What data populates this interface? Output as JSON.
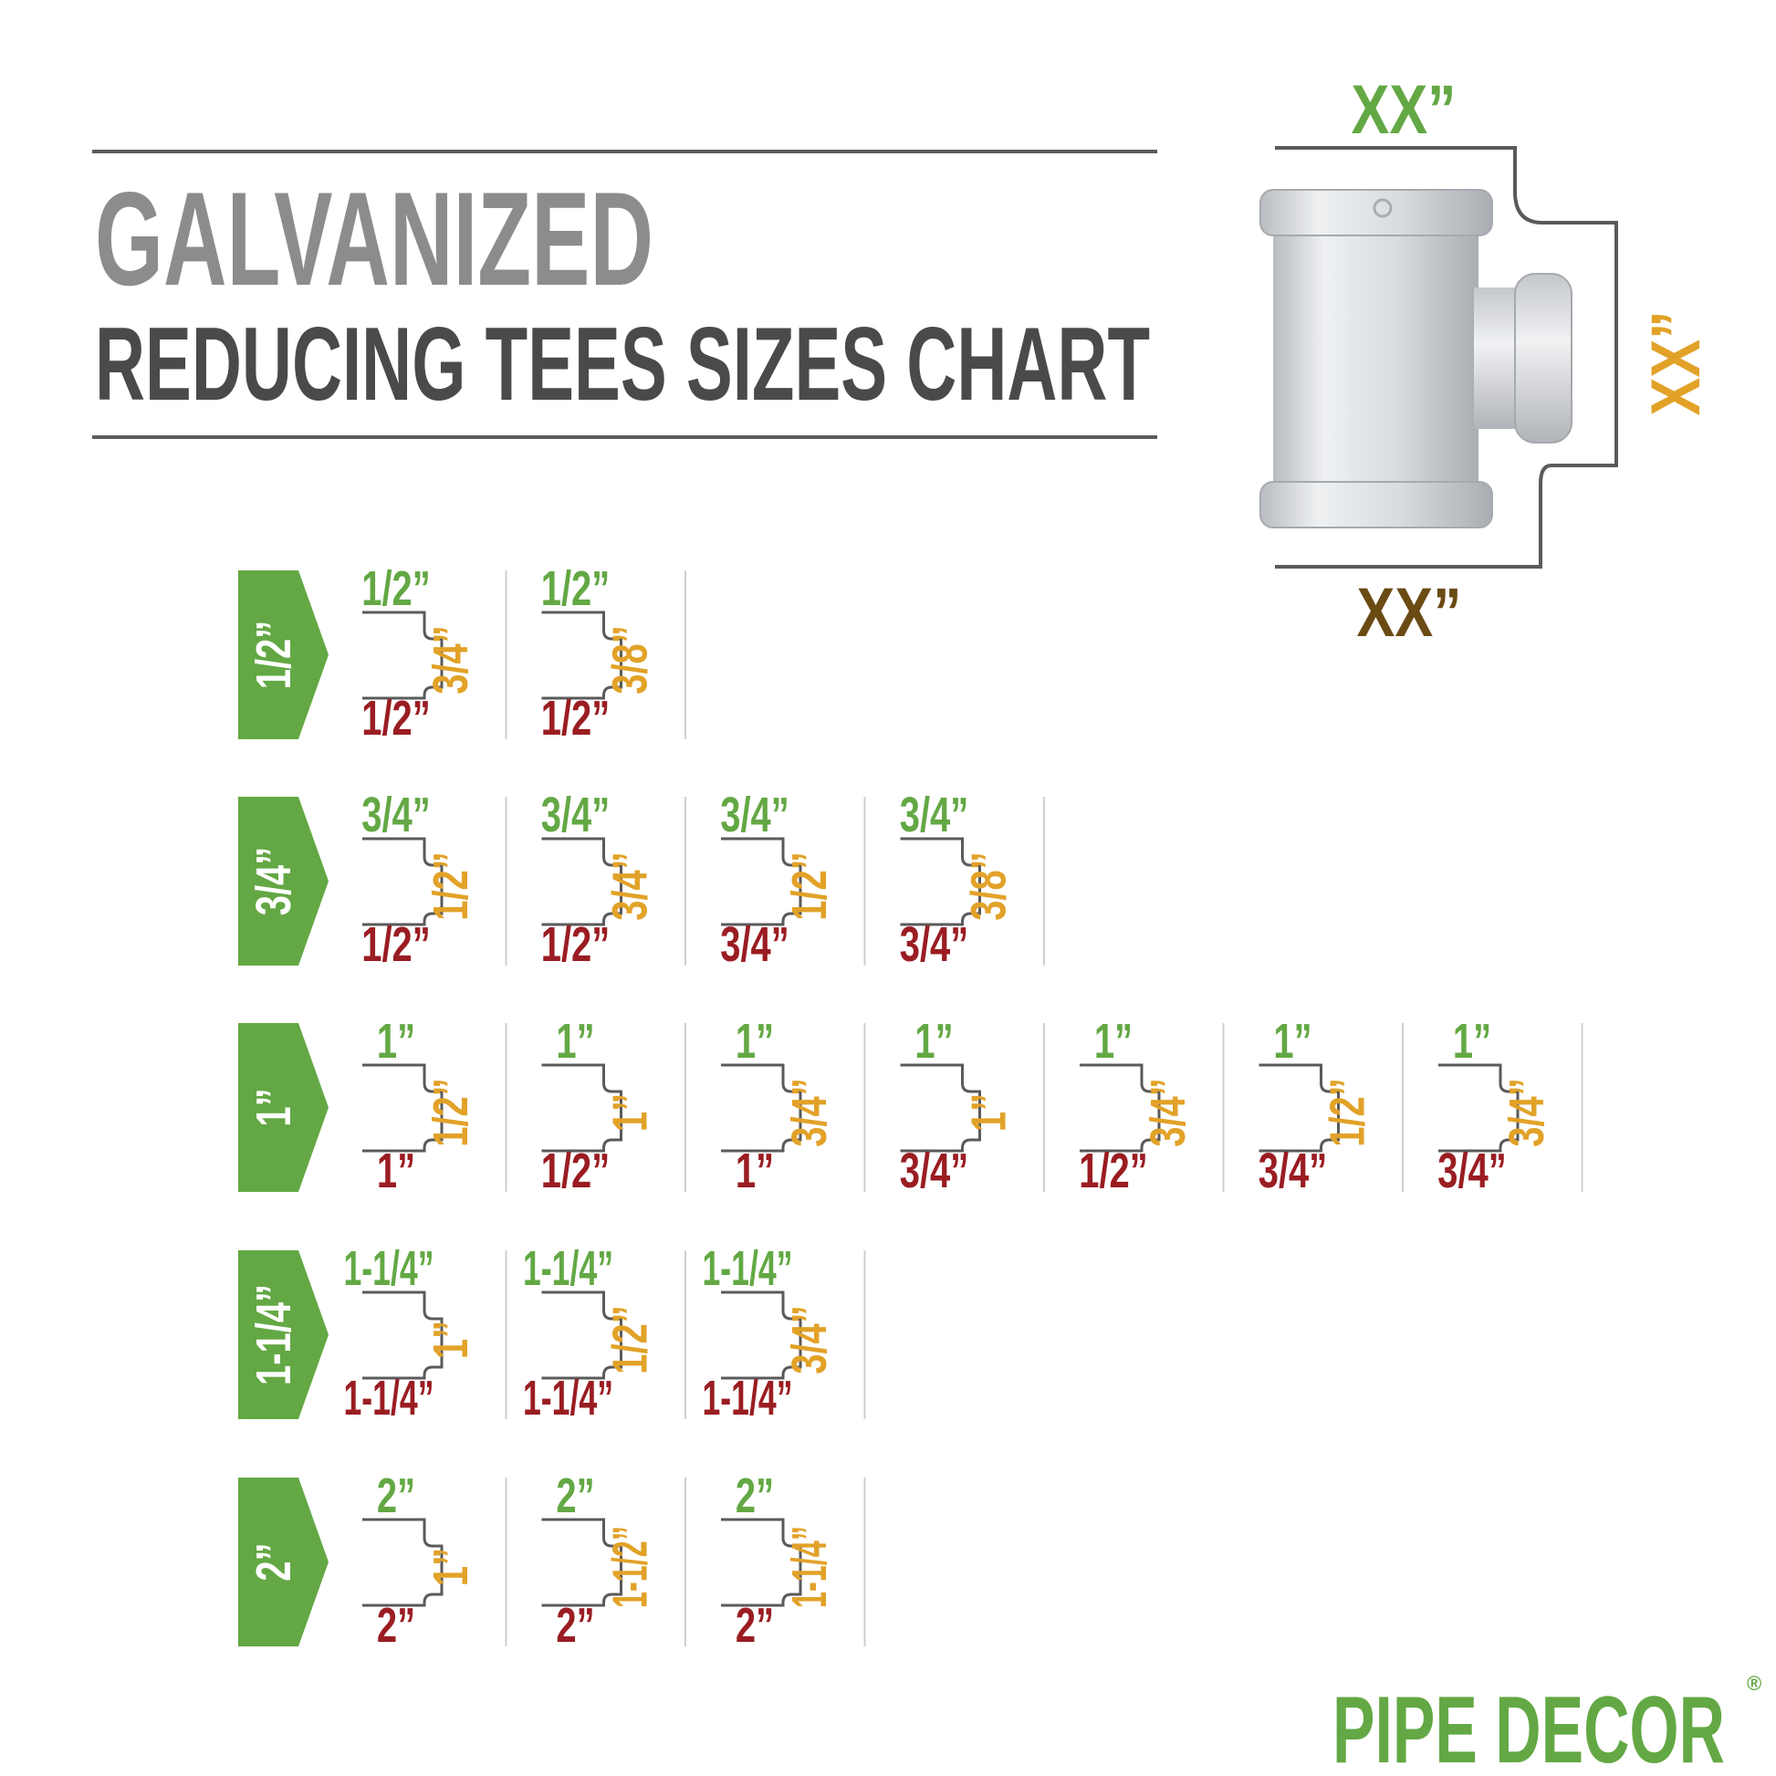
{
  "title": {
    "line1": "GALVANIZED",
    "line2": "REDUCING TEES SIZES CHART"
  },
  "diagram": {
    "top_label": "XX”",
    "side_label": "XX”",
    "bottom_label": "XX”"
  },
  "colors": {
    "green": "#63a844",
    "red": "#9a1d22",
    "orange": "#e2a228",
    "brown": "#6b4a14",
    "title_gray": "#8c8c8c",
    "title_dark": "#4a4a4a",
    "line": "#5a5a5a"
  },
  "rows": [
    {
      "size": "1/2”",
      "cells": [
        {
          "top": "1/2”",
          "right": "3/4”",
          "bottom": "1/2”"
        },
        {
          "top": "1/2”",
          "right": "3/8”",
          "bottom": "1/2”"
        }
      ]
    },
    {
      "size": "3/4”",
      "cells": [
        {
          "top": "3/4”",
          "right": "1/2”",
          "bottom": "1/2”"
        },
        {
          "top": "3/4”",
          "right": "3/4”",
          "bottom": "1/2”"
        },
        {
          "top": "3/4”",
          "right": "1/2”",
          "bottom": "3/4”"
        },
        {
          "top": "3/4”",
          "right": "3/8”",
          "bottom": "3/4”"
        }
      ]
    },
    {
      "size": "1”",
      "cells": [
        {
          "top": "1”",
          "right": "1/2”",
          "bottom": "1”"
        },
        {
          "top": "1”",
          "right": "1”",
          "bottom": "1/2”"
        },
        {
          "top": "1”",
          "right": "3/4”",
          "bottom": "1”"
        },
        {
          "top": "1”",
          "right": "1”",
          "bottom": "3/4”"
        },
        {
          "top": "1”",
          "right": "3/4”",
          "bottom": "1/2”"
        },
        {
          "top": "1”",
          "right": "1/2”",
          "bottom": "3/4”"
        },
        {
          "top": "1”",
          "right": "3/4”",
          "bottom": "3/4”"
        }
      ]
    },
    {
      "size": "1-1/4”",
      "cells": [
        {
          "top": "1-1/4”",
          "right": "1”",
          "bottom": "1-1/4”"
        },
        {
          "top": "1-1/4”",
          "right": "1/2”",
          "bottom": "1-1/4”"
        },
        {
          "top": "1-1/4”",
          "right": "3/4”",
          "bottom": "1-1/4”"
        }
      ]
    },
    {
      "size": "2”",
      "cells": [
        {
          "top": "2”",
          "right": "1”",
          "bottom": "2”"
        },
        {
          "top": "2”",
          "right": "1-1/2”",
          "bottom": "2”"
        },
        {
          "top": "2”",
          "right": "1-1/4”",
          "bottom": "2”"
        }
      ]
    }
  ],
  "logo": {
    "text": "PIPE DECOR",
    "mark": "®"
  }
}
